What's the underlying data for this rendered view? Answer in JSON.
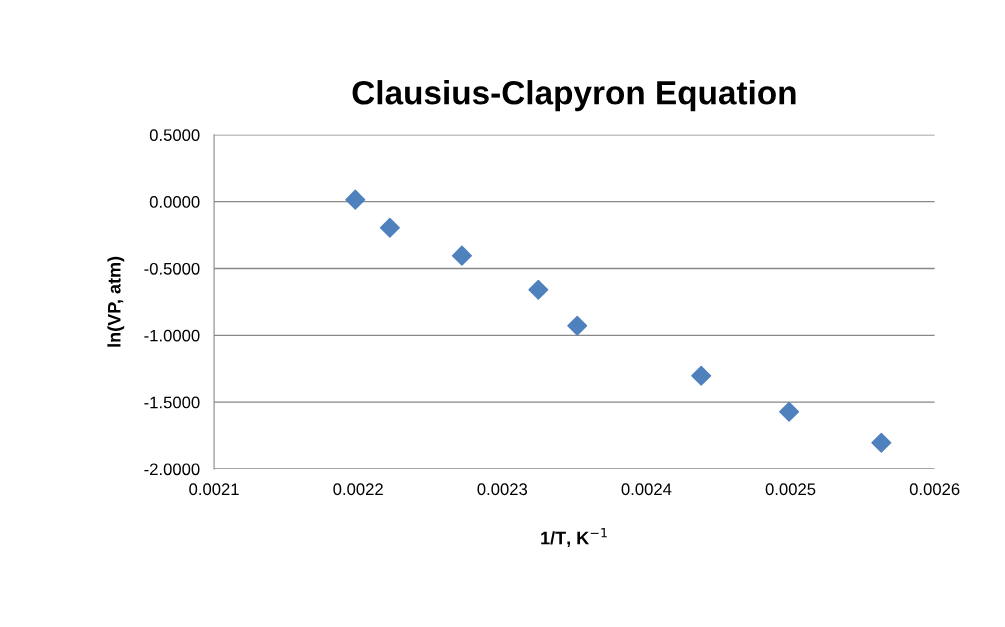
{
  "chart_data": {
    "type": "scatter",
    "title": "Clausius-Clapyron Equation",
    "xlabel": "1/T, K$^{−1}$",
    "ylabel": "ln(VP, atm)",
    "x": [
      0.002198,
      0.002222,
      0.002272,
      0.002325,
      0.002352,
      0.002438,
      0.002499,
      0.002563
    ],
    "series": [
      {
        "color": "#4f81bd",
        "values": [
          0.015,
          -0.195,
          -0.404,
          -0.659,
          -0.928,
          -1.302,
          -1.572,
          -1.804
        ]
      }
    ],
    "xlim": [
      0.0021,
      0.0026
    ],
    "ylim": [
      -2.0,
      0.5
    ],
    "xticks": [
      0.0021,
      0.0022,
      0.0023,
      0.0024,
      0.0025,
      0.0026
    ],
    "yticks": [
      {
        "value": -2.0,
        "label": "-2.0000"
      },
      {
        "value": -1.5,
        "label": "-1.5000"
      },
      {
        "value": -1.0,
        "label": "-1.0000"
      },
      {
        "value": -0.5,
        "label": "-0.5000"
      },
      {
        "value": 0.0,
        "label": "0.0000"
      },
      {
        "value": 0.5,
        "label": "0.5000"
      }
    ],
    "grid": "y",
    "marker": "diamond"
  }
}
